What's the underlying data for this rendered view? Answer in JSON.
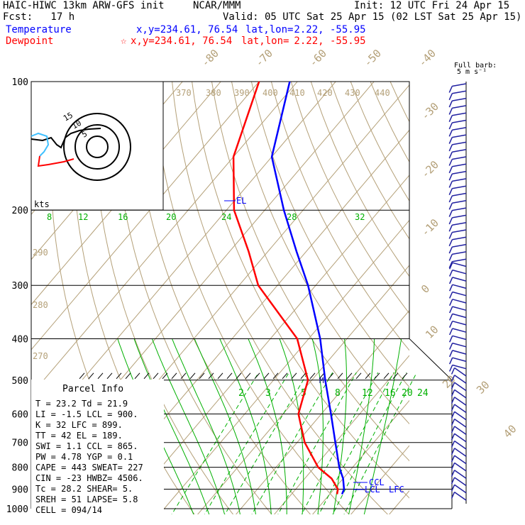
{
  "header": {
    "model": "HAIC-HIWC 13km ARW-GFS init",
    "org": "NCAR/MMM",
    "init": "Init: 12 UTC Fri 24 Apr 15",
    "fcst": "Fcst:   17 h",
    "valid": "Valid: 05 UTC Sat 25 Apr 15 (02 LST Sat 25 Apr 15)",
    "temp_label": "Temperature",
    "dew_label": "Dewpoint",
    "temp_xy": "x,y=234.61, 76.54",
    "dew_xy": "x,y=234.61, 76.54",
    "latlon_label": "lat,lon=",
    "latlon_value": " 2.22, -55.95",
    "star_glyph": "☆"
  },
  "colors": {
    "temperature": "#0000ff",
    "dewpoint": "#ff0000",
    "dry_adiabat": "#b4a078",
    "moist_adiabat": "#00b000",
    "mixing_ratio": "#00b000",
    "isobar": "#000000",
    "wind_barbs": "#2020a0"
  },
  "chart_data": {
    "type": "line",
    "chart_kind": "skew-T log-P sounding",
    "y_axis": "pressure (hPa), log scale",
    "pressure_ticks": [
      100,
      200,
      300,
      400,
      500,
      600,
      700,
      800,
      900,
      1000
    ],
    "temperature_ticks": [
      -80,
      -70,
      -60,
      -50,
      -40,
      -30,
      -20,
      -10,
      0,
      10,
      20,
      30,
      40
    ],
    "theta_labels": [
      "370",
      "380",
      "390",
      "400",
      "410",
      "420",
      "430",
      "440",
      "290",
      "280",
      "270"
    ],
    "upper_mixing_labels": [
      "8",
      "12",
      "16",
      "20",
      "24",
      "28",
      "32"
    ],
    "lower_mixing_labels": [
      "2",
      "3",
      "5",
      "8",
      "12",
      "16",
      "20",
      "24"
    ],
    "series": [
      {
        "name": "Temperature",
        "pressure": [
          925,
          900,
          850,
          800,
          700,
          600,
          500,
          400,
          300,
          250,
          200,
          150,
          100
        ],
        "values": [
          23.2,
          22.6,
          20.0,
          16.5,
          10.0,
          2.5,
          -6.5,
          -17.0,
          -32.0,
          -42.5,
          -55.0,
          -70.0,
          -82.0
        ]
      },
      {
        "name": "Dewpoint",
        "pressure": [
          925,
          900,
          850,
          800,
          700,
          600,
          500,
          400,
          300,
          250,
          200,
          150,
          100
        ],
        "values": [
          21.9,
          21.0,
          17.0,
          11.0,
          2.0,
          -6.0,
          -11.0,
          -23.0,
          -45.0,
          -55.0,
          -68.0,
          -80.0,
          -90.0
        ]
      }
    ],
    "annotations": {
      "el": "EL",
      "ccl": "CCL",
      "lcl": "LCL",
      "lfc": "LFC",
      "m": "M",
      "kts": "kts",
      "barb_title_1": "Full barb:",
      "barb_title_2": "5 m s⁻¹"
    },
    "hodograph_labels": [
      "15",
      "10",
      "5"
    ]
  },
  "parcel_info": {
    "title": "Parcel Info",
    "rows": [
      "T  =   23.2  Td =  21.9",
      "LI =   -1.5  LCL =  900.",
      "K  =    32  LFC =  899.",
      "TT =    42  EL  =  189.",
      "SWI =   1.1  CCL =  865.",
      "PW =  4.78  YGP =   0.1",
      "CAPE =  443  SWEAT=  227",
      "CIN =   -23  HWBZ= 4506.",
      "Tc =   28.2  SHEAR=   5.",
      "SREH =   51  LAPSE=  5.8",
      "CELL = 094/14"
    ]
  }
}
